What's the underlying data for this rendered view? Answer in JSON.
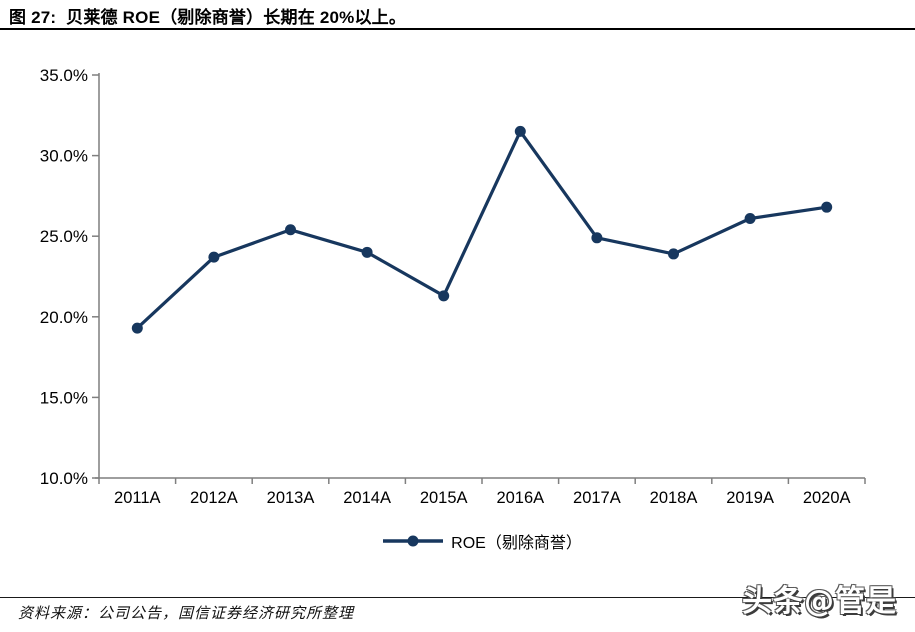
{
  "header": {
    "title": "图 27:  贝莱德 ROE（剔除商誉）长期在 20%以上。"
  },
  "chart_data": {
    "type": "line",
    "title": "贝莱德 ROE（剔除商誉）长期在 20%以上",
    "categories": [
      "2011A",
      "2012A",
      "2013A",
      "2014A",
      "2015A",
      "2016A",
      "2017A",
      "2018A",
      "2019A",
      "2020A"
    ],
    "series": [
      {
        "name": "ROE（剔除商誉）",
        "values": [
          19.3,
          23.7,
          25.4,
          24.0,
          21.3,
          31.5,
          24.9,
          23.9,
          26.1,
          26.8
        ]
      }
    ],
    "xlabel": "",
    "ylabel": "",
    "ylim": [
      10.0,
      35.0
    ],
    "ytick_step": 5.0,
    "ytick_labels": [
      "10.0%",
      "15.0%",
      "20.0%",
      "25.0%",
      "30.0%",
      "35.0%"
    ],
    "grid": false,
    "legend_position": "bottom",
    "line_color": "#17375E",
    "marker_color": "#17375E",
    "axis_color": "#7F7F7F",
    "tick_label_color": "#000000"
  },
  "footer": {
    "source": "资料来源：公司公告，国信证券经济研究所整理",
    "watermark": "头条@管是"
  }
}
